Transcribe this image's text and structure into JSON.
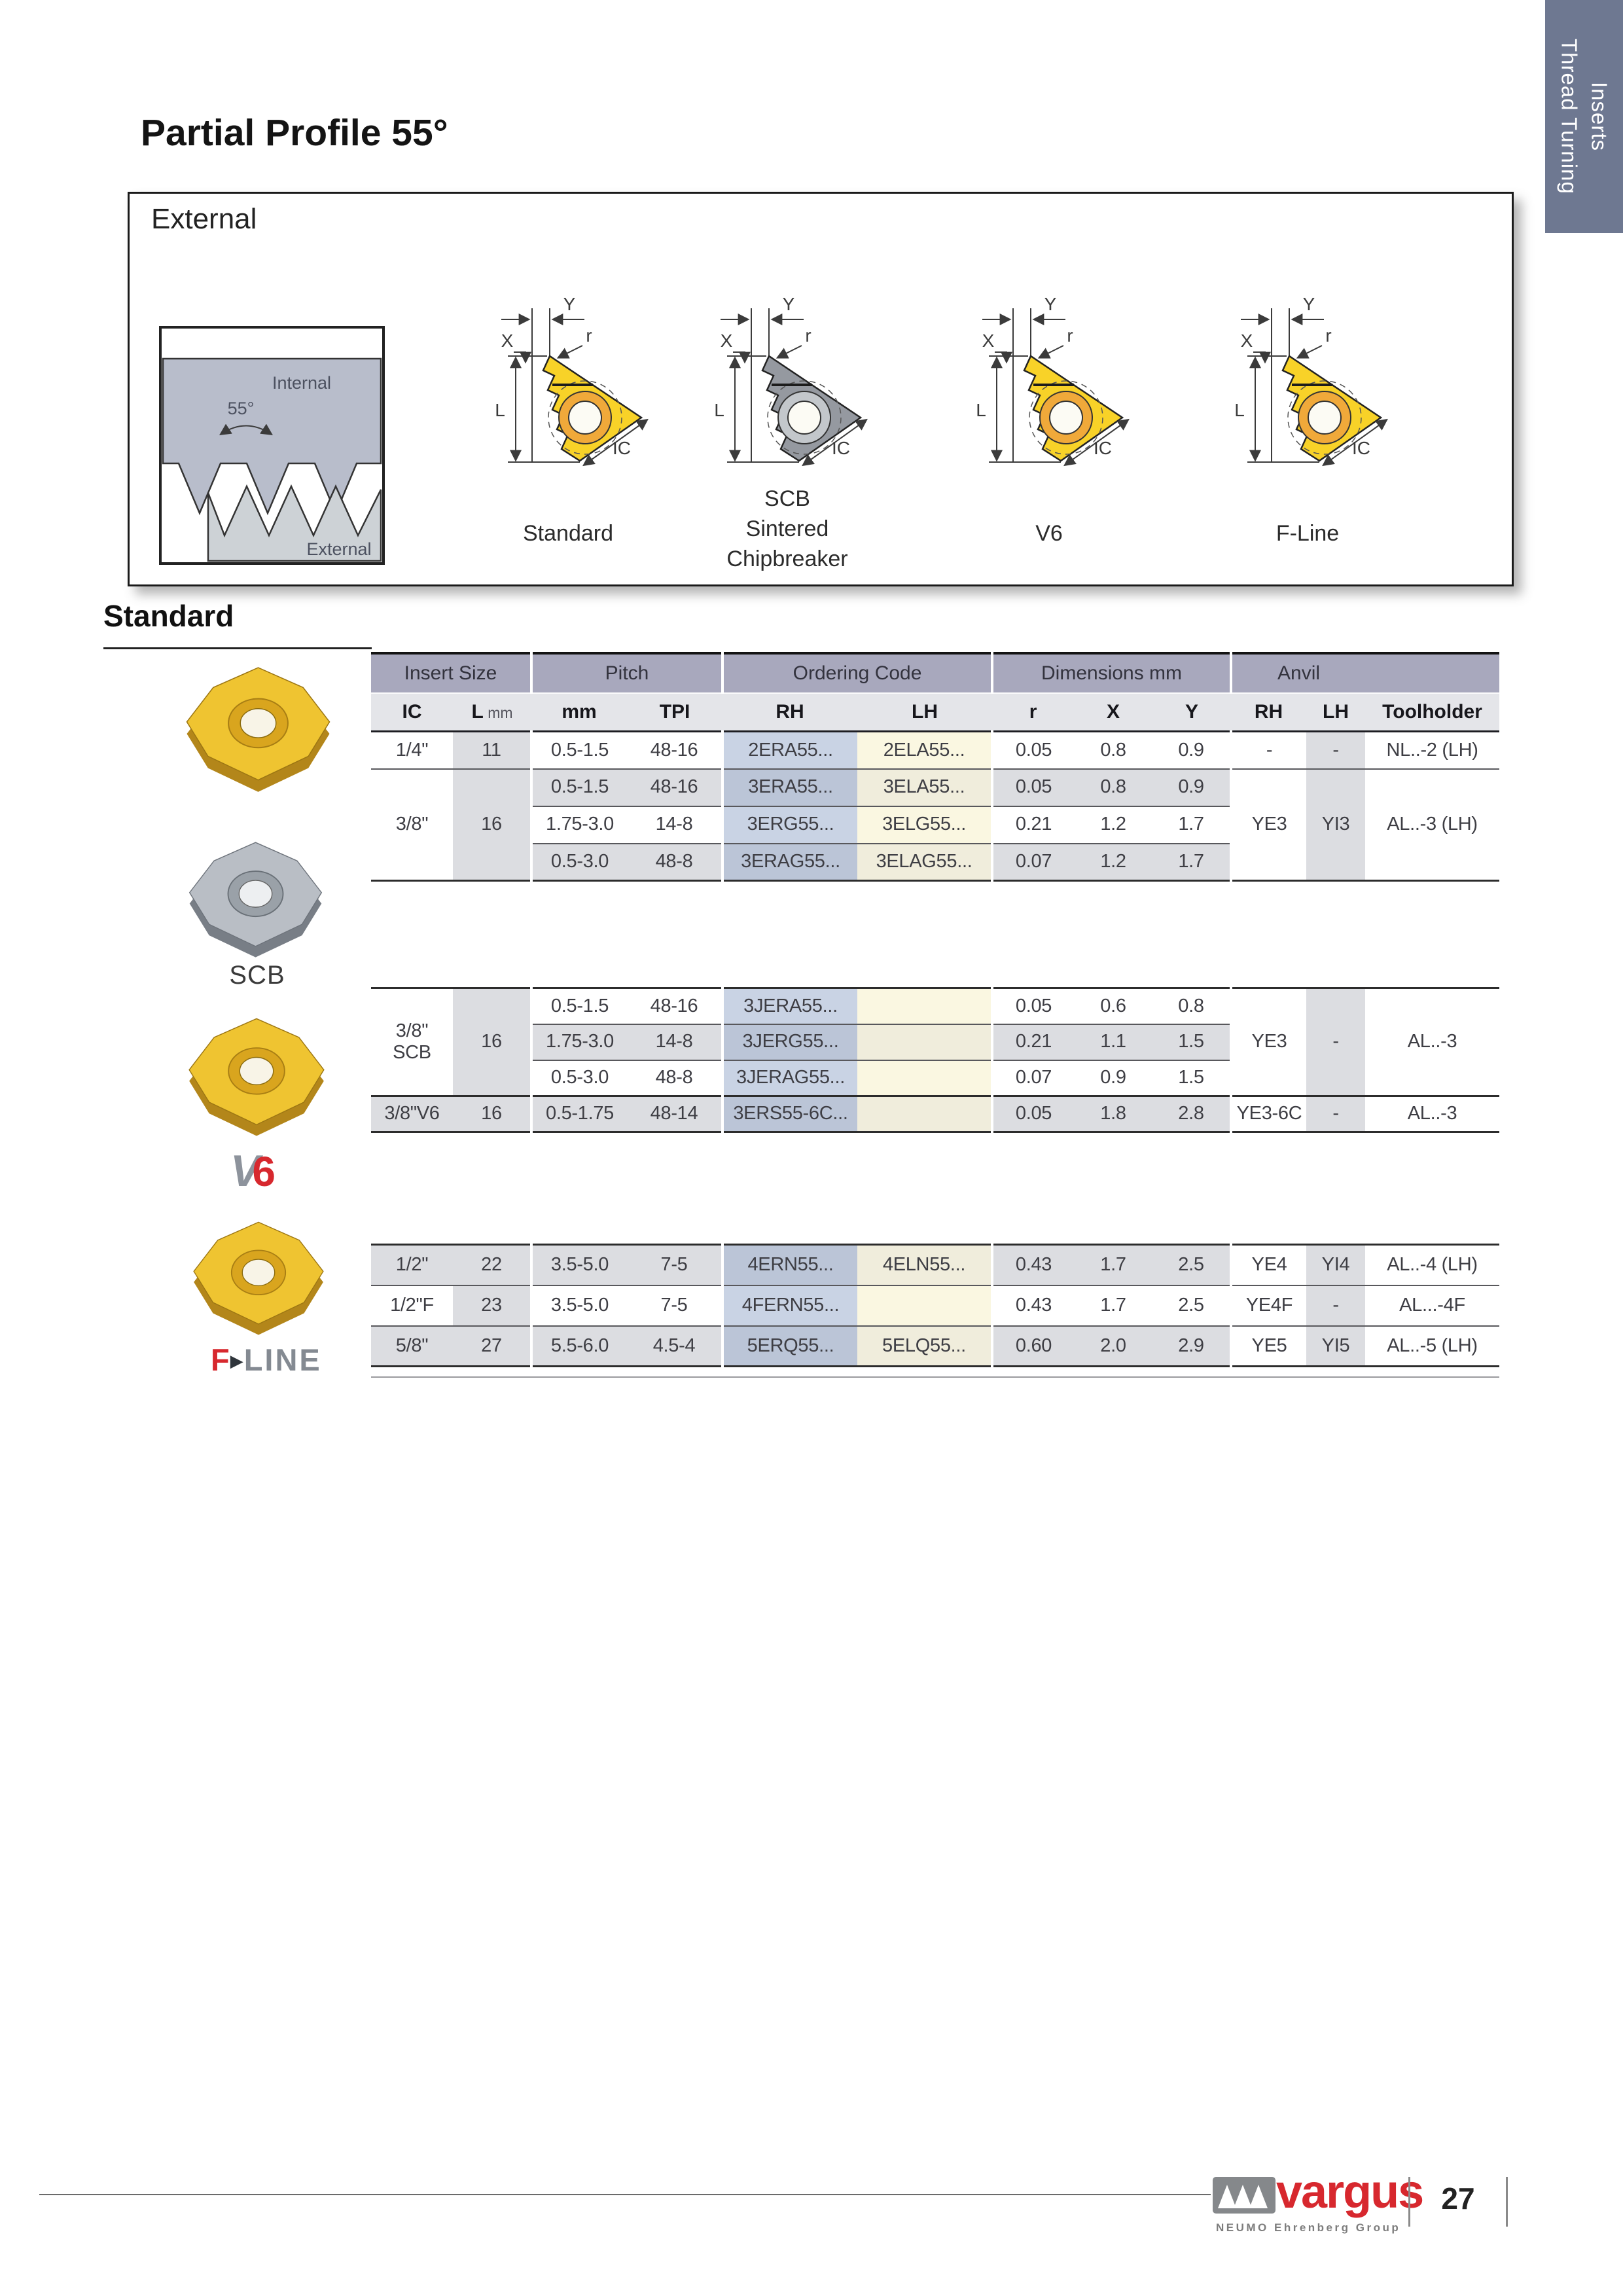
{
  "page": {
    "title": "Partial Profile 55°",
    "side_tab": {
      "line1": "Thread Turning",
      "line2": "Inserts"
    },
    "section_heading": "Standard"
  },
  "external_box": {
    "label": "External",
    "thread_diagram": {
      "internal": "Internal",
      "external": "External",
      "angle": "55°"
    },
    "dims": {
      "x": "X",
      "y": "Y",
      "r": "r",
      "l": "L",
      "ic": "IC"
    },
    "captions": {
      "standard": "Standard",
      "scb_lines": [
        "SCB",
        "Sintered",
        "Chipbreaker"
      ],
      "v6": "V6",
      "fline": "F-Line"
    }
  },
  "gallery": {
    "scb_label": "SCB",
    "v6_logo": {
      "v": "V",
      "six": "6"
    },
    "fline_logo": {
      "f": "F",
      "arrow": "▶",
      "line": "LINE"
    }
  },
  "table": {
    "groups": [
      {
        "label": "Insert Size",
        "span": 2,
        "gap": false
      },
      {
        "label": "Pitch",
        "span": 2,
        "gap": true
      },
      {
        "label": "Ordering Code",
        "span": 2,
        "gap": true
      },
      {
        "label": "Dimensions mm",
        "span": 3,
        "gap": true
      },
      {
        "label": "Anvil",
        "span": 2,
        "gap": true
      },
      {
        "label": "",
        "span": 1,
        "gap": false
      }
    ],
    "columns": [
      {
        "t": "IC"
      },
      {
        "t": "L",
        "unit": "mm"
      },
      {
        "t": "mm"
      },
      {
        "t": "TPI"
      },
      {
        "t": "RH"
      },
      {
        "t": "LH"
      },
      {
        "t": "r"
      },
      {
        "t": "X"
      },
      {
        "t": "Y"
      },
      {
        "t": "RH"
      },
      {
        "t": "LH"
      },
      {
        "t": "Toolholder"
      }
    ],
    "blocks": [
      {
        "rows": [
          {
            "shade": "w",
            "cells": [
              {
                "c": "c-ic",
                "t": "1/4\""
              },
              {
                "c": "c-l",
                "t": "11"
              },
              {
                "c": "c-mm",
                "t": "0.5-1.5"
              },
              {
                "c": "c-tpi",
                "t": "48-16"
              },
              {
                "c": "c-rh",
                "t": "2ERA55..."
              },
              {
                "c": "c-lh",
                "t": "2ELA55..."
              },
              {
                "c": "c-r",
                "t": "0.05"
              },
              {
                "c": "c-x",
                "t": "0.8"
              },
              {
                "c": "c-y",
                "t": "0.9"
              },
              {
                "c": "c-arh",
                "t": "-"
              },
              {
                "c": "c-alh",
                "t": "-"
              },
              {
                "c": "c-th",
                "t": "NL..-2 (LH)"
              }
            ]
          },
          {
            "shade": "g",
            "cells": [
              {
                "c": "c-ic",
                "t": "3/8\"",
                "rs": 3,
                "m": true
              },
              {
                "c": "c-l",
                "t": "16",
                "rs": 3
              },
              {
                "c": "c-mm",
                "t": "0.5-1.5"
              },
              {
                "c": "c-tpi",
                "t": "48-16"
              },
              {
                "c": "c-rh",
                "t": "3ERA55..."
              },
              {
                "c": "c-lh",
                "t": "3ELA55..."
              },
              {
                "c": "c-r",
                "t": "0.05"
              },
              {
                "c": "c-x",
                "t": "0.8"
              },
              {
                "c": "c-y",
                "t": "0.9"
              },
              {
                "c": "c-arh",
                "t": "YE3",
                "rs": 3
              },
              {
                "c": "c-alh",
                "t": "YI3",
                "rs": 3
              },
              {
                "c": "c-th",
                "t": "AL..-3 (LH)",
                "rs": 3
              }
            ]
          },
          {
            "shade": "w",
            "cells": [
              {
                "c": "c-mm",
                "t": "1.75-3.0"
              },
              {
                "c": "c-tpi",
                "t": "14-8"
              },
              {
                "c": "c-rh",
                "t": "3ERG55..."
              },
              {
                "c": "c-lh",
                "t": "3ELG55..."
              },
              {
                "c": "c-r",
                "t": "0.21"
              },
              {
                "c": "c-x",
                "t": "1.2"
              },
              {
                "c": "c-y",
                "t": "1.7"
              }
            ]
          },
          {
            "shade": "g",
            "cells": [
              {
                "c": "c-mm",
                "t": "0.5-3.0"
              },
              {
                "c": "c-tpi",
                "t": "48-8"
              },
              {
                "c": "c-rh",
                "t": "3ERAG55..."
              },
              {
                "c": "c-lh",
                "t": "3ELAG55..."
              },
              {
                "c": "c-r",
                "t": "0.07"
              },
              {
                "c": "c-x",
                "t": "1.2"
              },
              {
                "c": "c-y",
                "t": "1.7"
              }
            ]
          }
        ]
      },
      {
        "rows": [
          {
            "shade": "w",
            "cells": [
              {
                "c": "c-ic",
                "t": "3/8\"\nSCB",
                "rs": 3,
                "m": true
              },
              {
                "c": "c-l",
                "t": "16",
                "rs": 3
              },
              {
                "c": "c-mm",
                "t": "0.5-1.5"
              },
              {
                "c": "c-tpi",
                "t": "48-16"
              },
              {
                "c": "c-rh",
                "t": "3JERA55..."
              },
              {
                "c": "c-lh",
                "t": ""
              },
              {
                "c": "c-r",
                "t": "0.05"
              },
              {
                "c": "c-x",
                "t": "0.6"
              },
              {
                "c": "c-y",
                "t": "0.8"
              },
              {
                "c": "c-arh",
                "t": "YE3",
                "rs": 3
              },
              {
                "c": "c-alh",
                "t": "-",
                "rs": 3
              },
              {
                "c": "c-th",
                "t": "AL..-3",
                "rs": 3
              }
            ]
          },
          {
            "shade": "g",
            "cells": [
              {
                "c": "c-mm",
                "t": "1.75-3.0"
              },
              {
                "c": "c-tpi",
                "t": "14-8"
              },
              {
                "c": "c-rh",
                "t": "3JERG55..."
              },
              {
                "c": "c-lh",
                "t": ""
              },
              {
                "c": "c-r",
                "t": "0.21"
              },
              {
                "c": "c-x",
                "t": "1.1"
              },
              {
                "c": "c-y",
                "t": "1.5"
              }
            ]
          },
          {
            "shade": "w",
            "cells": [
              {
                "c": "c-mm",
                "t": "0.5-3.0"
              },
              {
                "c": "c-tpi",
                "t": "48-8"
              },
              {
                "c": "c-rh",
                "t": "3JERAG55..."
              },
              {
                "c": "c-lh",
                "t": ""
              },
              {
                "c": "c-r",
                "t": "0.07"
              },
              {
                "c": "c-x",
                "t": "0.9"
              },
              {
                "c": "c-y",
                "t": "1.5"
              }
            ]
          },
          {
            "shade": "g",
            "heavy": true,
            "cells": [
              {
                "c": "c-ic",
                "t": "3/8\"V6"
              },
              {
                "c": "c-l",
                "t": "16"
              },
              {
                "c": "c-mm",
                "t": "0.5-1.75"
              },
              {
                "c": "c-tpi",
                "t": "48-14"
              },
              {
                "c": "c-rh",
                "t": "3ERS55-6C..."
              },
              {
                "c": "c-lh",
                "t": ""
              },
              {
                "c": "c-r",
                "t": "0.05"
              },
              {
                "c": "c-x",
                "t": "1.8"
              },
              {
                "c": "c-y",
                "t": "2.8"
              },
              {
                "c": "c-arh",
                "t": "YE3-6C"
              },
              {
                "c": "c-alh",
                "t": "-"
              },
              {
                "c": "c-th",
                "t": "AL..-3"
              }
            ]
          }
        ]
      },
      {
        "rows": [
          {
            "shade": "g",
            "cells": [
              {
                "c": "c-ic",
                "t": "1/2\""
              },
              {
                "c": "c-l",
                "t": "22"
              },
              {
                "c": "c-mm",
                "t": "3.5-5.0"
              },
              {
                "c": "c-tpi",
                "t": "7-5"
              },
              {
                "c": "c-rh",
                "t": "4ERN55..."
              },
              {
                "c": "c-lh",
                "t": "4ELN55..."
              },
              {
                "c": "c-r",
                "t": "0.43"
              },
              {
                "c": "c-x",
                "t": "1.7"
              },
              {
                "c": "c-y",
                "t": "2.5"
              },
              {
                "c": "c-arh",
                "t": "YE4"
              },
              {
                "c": "c-alh",
                "t": "YI4"
              },
              {
                "c": "c-th",
                "t": "AL..-4 (LH)"
              }
            ]
          },
          {
            "shade": "w",
            "cells": [
              {
                "c": "c-ic",
                "t": "1/2\"F"
              },
              {
                "c": "c-l",
                "t": "23"
              },
              {
                "c": "c-mm",
                "t": "3.5-5.0"
              },
              {
                "c": "c-tpi",
                "t": "7-5"
              },
              {
                "c": "c-rh",
                "t": "4FERN55..."
              },
              {
                "c": "c-lh",
                "t": ""
              },
              {
                "c": "c-r",
                "t": "0.43"
              },
              {
                "c": "c-x",
                "t": "1.7"
              },
              {
                "c": "c-y",
                "t": "2.5"
              },
              {
                "c": "c-arh",
                "t": "YE4F"
              },
              {
                "c": "c-alh",
                "t": "-"
              },
              {
                "c": "c-th",
                "t": "AL...-4F"
              }
            ]
          },
          {
            "shade": "g",
            "cells": [
              {
                "c": "c-ic",
                "t": "5/8\""
              },
              {
                "c": "c-l",
                "t": "27"
              },
              {
                "c": "c-mm",
                "t": "5.5-6.0"
              },
              {
                "c": "c-tpi",
                "t": "4.5-4"
              },
              {
                "c": "c-rh",
                "t": "5ERQ55..."
              },
              {
                "c": "c-lh",
                "t": "5ELQ55..."
              },
              {
                "c": "c-r",
                "t": "0.60"
              },
              {
                "c": "c-x",
                "t": "2.0"
              },
              {
                "c": "c-y",
                "t": "2.9"
              },
              {
                "c": "c-arh",
                "t": "YE5"
              },
              {
                "c": "c-alh",
                "t": "YI5"
              },
              {
                "c": "c-th",
                "t": "AL..-5 (LH)"
              }
            ]
          }
        ]
      }
    ]
  },
  "footer": {
    "brand": "vargus",
    "brand_sub": "NEUMO Ehrenberg Group",
    "page_number": "27"
  }
}
